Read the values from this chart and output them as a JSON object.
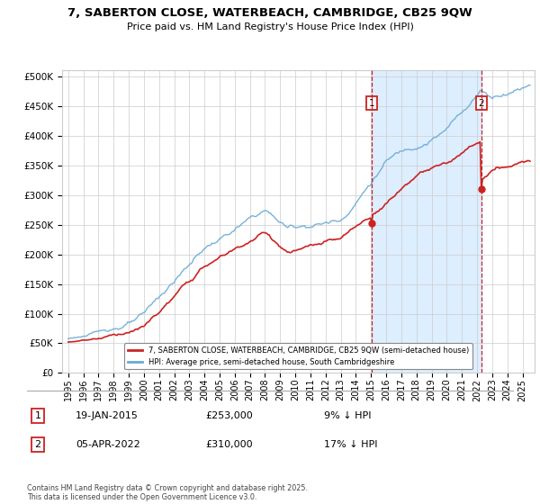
{
  "title_line1": "7, SABERTON CLOSE, WATERBEACH, CAMBRIDGE, CB25 9QW",
  "title_line2": "Price paid vs. HM Land Registry's House Price Index (HPI)",
  "ytick_values": [
    0,
    50000,
    100000,
    150000,
    200000,
    250000,
    300000,
    350000,
    400000,
    450000,
    500000
  ],
  "xlim_start": 1994.6,
  "xlim_end": 2025.8,
  "ylim_min": 0,
  "ylim_max": 510000,
  "hpi_color": "#6aaad4",
  "price_color": "#cc2222",
  "marker1_date": 2015.05,
  "marker1_price": 253000,
  "marker2_date": 2022.28,
  "marker2_price": 310000,
  "legend_label_red": "7, SABERTON CLOSE, WATERBEACH, CAMBRIDGE, CB25 9QW (semi-detached house)",
  "legend_label_blue": "HPI: Average price, semi-detached house, South Cambridgeshire",
  "annotation1_date": "19-JAN-2015",
  "annotation1_price": "£253,000",
  "annotation1_note": "9% ↓ HPI",
  "annotation2_date": "05-APR-2022",
  "annotation2_price": "£310,000",
  "annotation2_note": "17% ↓ HPI",
  "footer": "Contains HM Land Registry data © Crown copyright and database right 2025.\nThis data is licensed under the Open Government Licence v3.0.",
  "background_color": "#ffffff",
  "shaded_region_color": "#ddeeff",
  "grid_color": "#cccccc",
  "noise_seed": 123
}
